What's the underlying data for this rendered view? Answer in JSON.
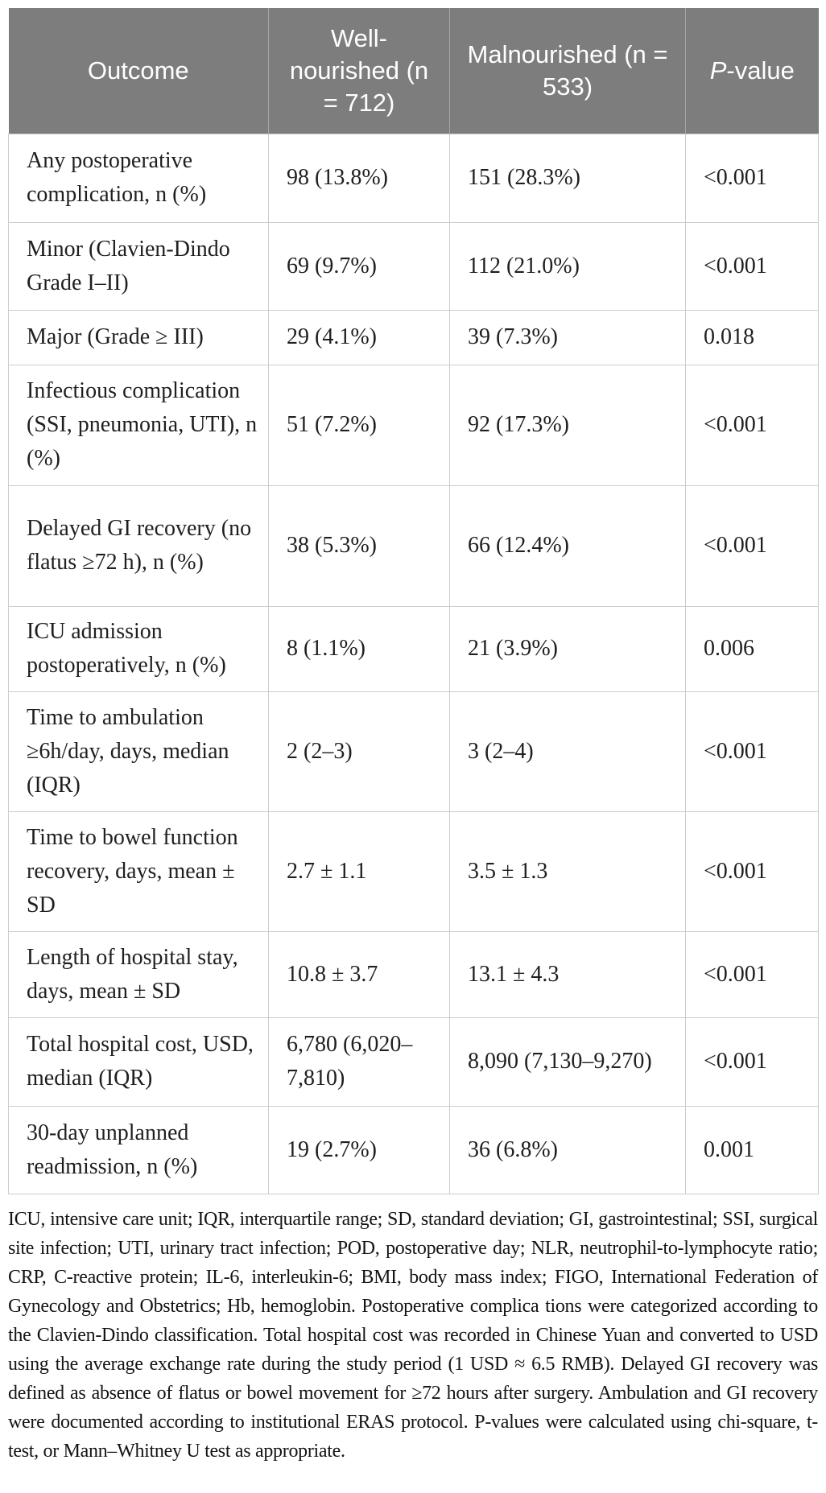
{
  "colors": {
    "header_bg": "#7d7d7d",
    "header_text": "#ffffff",
    "border": "#cccccc",
    "body_text": "#1f1f1f"
  },
  "table": {
    "header": {
      "outcome": "Outcome",
      "well_nourished": "Well-nourished (n = 712)",
      "malnourished": "Malnourished (n = 533)",
      "p_value_italic": "P",
      "p_value_rest": "-value"
    },
    "rows": [
      {
        "outcome": "Any postoperative complication, n (%)",
        "well": "98 (13.8%)",
        "mal": "151 (28.3%)",
        "p": "<0.001"
      },
      {
        "outcome": "Minor (Clavien-Dindo Grade I–II)",
        "well": "69 (9.7%)",
        "mal": "112 (21.0%)",
        "p": "<0.001"
      },
      {
        "outcome": "Major (Grade ≥ III)",
        "well": "29 (4.1%)",
        "mal": "39 (7.3%)",
        "p": "0.018"
      },
      {
        "outcome": "Infectious complication (SSI, pneumonia, UTI), n (%)",
        "well": "51 (7.2%)",
        "mal": "92 (17.3%)",
        "p": "<0.001"
      },
      {
        "outcome": "Delayed GI recovery (no flatus ≥72 h), n (%)",
        "well": "38 (5.3%)",
        "mal": "66 (12.4%)",
        "p": "<0.001"
      },
      {
        "outcome": "ICU admission postoperatively, n (%)",
        "well": "8 (1.1%)",
        "mal": "21 (3.9%)",
        "p": "0.006"
      },
      {
        "outcome": "Time to ambulation ≥6h/day, days, median (IQR)",
        "well": "2 (2–3)",
        "mal": "3 (2–4)",
        "p": "<0.001"
      },
      {
        "outcome": "Time to bowel function recovery, days, mean ± SD",
        "well": "2.7 ± 1.1",
        "mal": "3.5 ± 1.3",
        "p": "<0.001"
      },
      {
        "outcome": "Length of hospital stay, days, mean ± SD",
        "well": "10.8 ± 3.7",
        "mal": "13.1 ± 4.3",
        "p": "<0.001"
      },
      {
        "outcome": "Total hospital cost, USD, median (IQR)",
        "well": "6,780 (6,020–7,810)",
        "mal": "8,090 (7,130–9,270)",
        "p": "<0.001"
      },
      {
        "outcome": "30-day unplanned readmission, n (%)",
        "well": "19 (2.7%)",
        "mal": "36 (6.8%)",
        "p": "0.001"
      }
    ]
  },
  "footnote": "ICU, intensive care unit; IQR, interquartile range; SD, standard deviation; GI, gastrointestinal; SSI, surgical site infection; UTI, urinary tract infection; POD, postoperative day; NLR, neutrophil-to-lymphocyte ratio; CRP, C-reactive protein; IL-6, interleukin-6; BMI, body mass index; FIGO, International Federation of Gynecology and Obstetrics; Hb, hemoglobin. Postoperative complica tions were categorized according to the Clavien-Dindo classification. Total hospital cost was recorded in Chinese Yuan and converted to USD using the average exchange rate during the study period (1 USD ≈ 6.5 RMB). Delayed GI recovery was defined as absence of flatus or bowel movement for ≥72 hours after surgery. Ambulation and GI recovery were documented according to institutional ERAS protocol. P-values were calculated using chi-square, t-test, or Mann–Whitney U test as appropriate."
}
